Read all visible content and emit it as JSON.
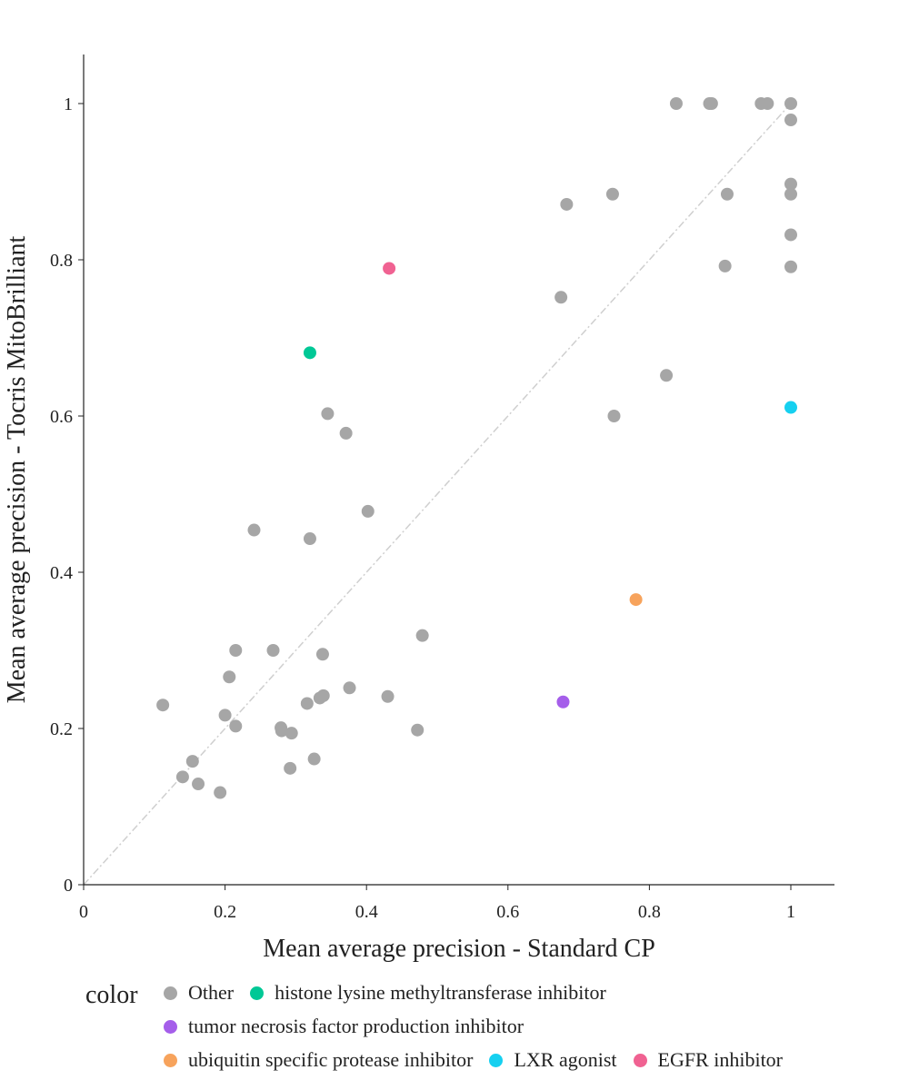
{
  "chart_data": {
    "type": "scatter",
    "title": "",
    "xlabel": "Mean average precision - Standard CP",
    "ylabel": "Mean average precision - Tocris MitoBrilliant",
    "xlim": [
      0,
      1.06
    ],
    "ylim": [
      0,
      1.06
    ],
    "x_ticks": [
      0,
      0.2,
      0.4,
      0.6,
      0.8,
      1
    ],
    "x_tick_labels": [
      "0",
      "0.2",
      "0.4",
      "0.6",
      "0.8",
      "1"
    ],
    "y_ticks": [
      0,
      0.2,
      0.4,
      0.6,
      0.8,
      1
    ],
    "y_tick_labels": [
      "0",
      "0.2",
      "0.4",
      "0.6",
      "0.8",
      "1"
    ],
    "diagonal_reference_line": true,
    "grid": false,
    "legend_title": "color",
    "legend_position": "bottom",
    "series": [
      {
        "name": "Other",
        "color": "#a6a6a6",
        "points": [
          [
            0.838,
            1.0
          ],
          [
            0.885,
            1.0
          ],
          [
            0.888,
            1.0
          ],
          [
            0.958,
            1.0
          ],
          [
            0.967,
            1.0
          ],
          [
            1.0,
            1.0
          ],
          [
            1.0,
            0.979
          ],
          [
            1.0,
            0.897
          ],
          [
            1.0,
            0.884
          ],
          [
            1.0,
            0.832
          ],
          [
            1.0,
            0.791
          ],
          [
            0.91,
            0.884
          ],
          [
            0.907,
            0.792
          ],
          [
            0.748,
            0.884
          ],
          [
            0.683,
            0.871
          ],
          [
            0.675,
            0.752
          ],
          [
            0.824,
            0.652
          ],
          [
            0.75,
            0.6
          ],
          [
            0.345,
            0.603
          ],
          [
            0.371,
            0.578
          ],
          [
            0.402,
            0.478
          ],
          [
            0.32,
            0.443
          ],
          [
            0.241,
            0.454
          ],
          [
            0.479,
            0.319
          ],
          [
            0.43,
            0.241
          ],
          [
            0.376,
            0.252
          ],
          [
            0.338,
            0.295
          ],
          [
            0.339,
            0.242
          ],
          [
            0.334,
            0.239
          ],
          [
            0.316,
            0.232
          ],
          [
            0.326,
            0.161
          ],
          [
            0.472,
            0.198
          ],
          [
            0.268,
            0.3
          ],
          [
            0.215,
            0.3
          ],
          [
            0.206,
            0.266
          ],
          [
            0.2,
            0.217
          ],
          [
            0.215,
            0.203
          ],
          [
            0.279,
            0.201
          ],
          [
            0.28,
            0.197
          ],
          [
            0.294,
            0.194
          ],
          [
            0.292,
            0.149
          ],
          [
            0.112,
            0.23
          ],
          [
            0.154,
            0.158
          ],
          [
            0.14,
            0.138
          ],
          [
            0.162,
            0.129
          ],
          [
            0.193,
            0.118
          ]
        ]
      },
      {
        "name": "histone lysine methyltransferase inhibitor",
        "color": "#00c896",
        "points": [
          [
            0.32,
            0.681
          ]
        ]
      },
      {
        "name": "tumor necrosis factor production inhibitor",
        "color": "#a55eea",
        "points": [
          [
            0.678,
            0.234
          ]
        ]
      },
      {
        "name": "ubiquitin specific protease inhibitor",
        "color": "#f7a35c",
        "points": [
          [
            0.781,
            0.365
          ]
        ]
      },
      {
        "name": "LXR agonist",
        "color": "#16d0f0",
        "points": [
          [
            1.0,
            0.611
          ]
        ]
      },
      {
        "name": "EGFR inhibitor",
        "color": "#f06292",
        "points": [
          [
            0.432,
            0.789
          ]
        ]
      }
    ]
  }
}
